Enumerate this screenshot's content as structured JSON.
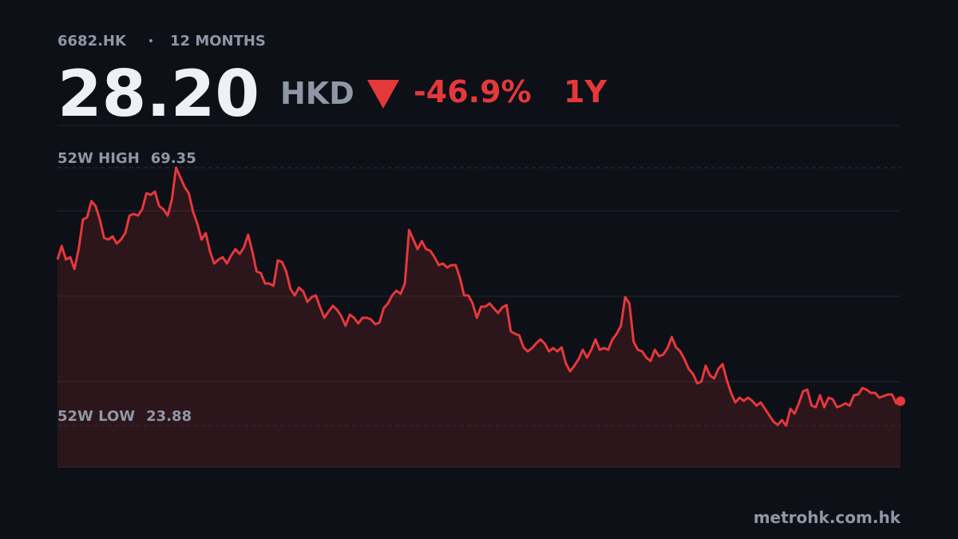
{
  "ticker": "6682.HK",
  "period": "12 MONTHS",
  "price": "28.20",
  "currency": "HKD",
  "change": "-46.9%",
  "range": "1Y",
  "footer": "metrohk.com.hk",
  "chart_data": {
    "type": "line",
    "color": "#e5383b",
    "ylim": [
      16.56,
      76.81
    ],
    "grid": true,
    "annotations": [
      {
        "label": "52W HIGH",
        "value": 69.35
      },
      {
        "label": "52W LOW",
        "value": 23.88
      }
    ],
    "values": [
      53.16,
      55.55,
      53.16,
      53.58,
      51.47,
      54.99,
      60.2,
      60.62,
      63.44,
      62.59,
      60.2,
      56.96,
      56.68,
      57.24,
      55.98,
      56.68,
      57.81,
      60.9,
      61.19,
      60.9,
      62.03,
      64.85,
      64.56,
      65.13,
      62.59,
      62.03,
      60.9,
      63.72,
      69.35,
      67.66,
      65.97,
      64.85,
      61.61,
      59.5,
      56.68,
      57.81,
      54.57,
      52.46,
      53.16,
      53.58,
      52.46,
      53.87,
      54.99,
      54.15,
      55.27,
      57.53,
      54.57,
      51.05,
      50.77,
      48.94,
      48.94,
      48.52,
      53.02,
      52.74,
      51.05,
      47.95,
      46.83,
      48.23,
      47.53,
      45.7,
      46.55,
      46.83,
      44.72,
      42.89,
      44.01,
      45.0,
      44.29,
      43.17,
      41.48,
      43.45,
      42.89,
      41.9,
      42.89,
      42.89,
      42.6,
      41.76,
      42.04,
      44.57,
      45.42,
      46.83,
      47.67,
      47.11,
      48.94,
      58.37,
      56.68,
      54.99,
      56.4,
      54.99,
      54.71,
      53.58,
      52.18,
      52.46,
      51.75,
      52.18,
      52.18,
      49.92,
      46.83,
      46.83,
      45.42,
      42.89,
      44.86,
      44.86,
      45.42,
      44.57,
      43.73,
      44.72,
      45.14,
      40.49,
      40.07,
      39.79,
      37.68,
      36.97,
      37.54,
      38.38,
      39.08,
      38.38,
      36.97,
      37.54,
      36.97,
      37.68,
      34.86,
      33.45,
      34.44,
      35.57,
      37.25,
      35.85,
      37.25,
      39.08,
      37.25,
      37.54,
      37.25,
      39.08,
      40.07,
      41.48,
      46.55,
      45.42,
      38.66,
      37.25,
      36.97,
      35.85,
      35.28,
      37.25,
      36.13,
      36.41,
      37.54,
      39.51,
      37.68,
      36.97,
      35.57,
      33.88,
      33.03,
      31.34,
      31.62,
      34.44,
      32.75,
      32.19,
      33.88,
      34.72,
      31.91,
      29.65,
      27.96,
      28.81,
      28.25,
      28.81,
      28.25,
      27.4,
      27.96,
      26.84,
      25.71,
      24.59,
      24.02,
      24.87,
      23.88,
      26.84,
      25.99,
      27.82,
      29.93,
      30.22,
      27.4,
      27.12,
      29.23,
      27.12,
      28.81,
      28.53,
      27.12,
      27.4,
      27.82,
      27.4,
      29.23,
      29.37,
      30.5,
      30.22,
      29.65,
      29.65,
      28.81,
      29.09,
      29.37,
      29.37,
      27.82,
      28.2
    ]
  }
}
